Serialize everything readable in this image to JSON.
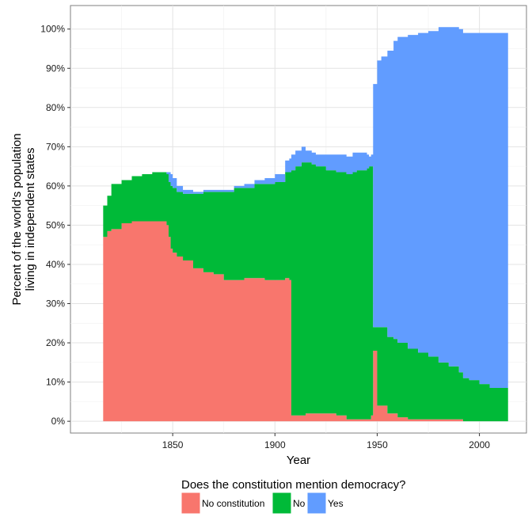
{
  "chart_data": {
    "type": "area",
    "title": "",
    "xlabel": "Year",
    "ylabel_lines": [
      "Percent of the world's population",
      "living in independent states"
    ],
    "xlim": [
      1800,
      2023
    ],
    "ylim": [
      -3,
      106
    ],
    "x_ticks": [
      1850,
      1900,
      1950,
      2000
    ],
    "x_tick_labels": [
      "1850",
      "1900",
      "1950",
      "2000"
    ],
    "y_ticks": [
      0,
      10,
      20,
      30,
      40,
      50,
      60,
      70,
      80,
      90,
      100
    ],
    "y_tick_labels": [
      "0%",
      "10%",
      "20%",
      "30%",
      "40%",
      "50%",
      "60%",
      "70%",
      "80%",
      "90%",
      "100%"
    ],
    "grid": true,
    "stacked": true,
    "legend": {
      "title": "Does the constitution mention democracy?",
      "position": "bottom"
    },
    "x": [
      1816,
      1818,
      1820,
      1825,
      1830,
      1835,
      1840,
      1845,
      1847,
      1848,
      1849,
      1850,
      1852,
      1855,
      1860,
      1865,
      1870,
      1875,
      1880,
      1885,
      1890,
      1895,
      1900,
      1905,
      1907,
      1908,
      1910,
      1913,
      1915,
      1918,
      1920,
      1925,
      1930,
      1935,
      1938,
      1940,
      1945,
      1946,
      1947,
      1948,
      1950,
      1952,
      1955,
      1958,
      1960,
      1965,
      1970,
      1975,
      1980,
      1985,
      1990,
      1992,
      1995,
      2000,
      2005,
      2010,
      2013
    ],
    "series": [
      {
        "name": "No constitution",
        "color": "#F8766D",
        "values": [
          47,
          48.5,
          49,
          50.5,
          51,
          51,
          51,
          51,
          50,
          47,
          44,
          43,
          42,
          41,
          39,
          38,
          37.5,
          36,
          36,
          36.5,
          36.5,
          36,
          36,
          36.5,
          36,
          1.5,
          1.5,
          1.5,
          2,
          2,
          2,
          2,
          1.5,
          0.5,
          0.5,
          0.5,
          0.5,
          0.5,
          1.5,
          18,
          4,
          4,
          2,
          2,
          1,
          0.5,
          0.5,
          0.5,
          0.5,
          0.5,
          0.5,
          0,
          0,
          0,
          0,
          0,
          0
        ]
      },
      {
        "name": "No",
        "color": "#00BA38",
        "values": [
          8,
          9,
          11.5,
          11,
          11.5,
          12,
          12.5,
          12.5,
          13,
          14,
          16,
          16.5,
          16.5,
          17,
          19,
          20.5,
          21,
          22.5,
          23.5,
          23,
          24,
          24.5,
          25,
          27,
          27.5,
          62.5,
          63.5,
          64.5,
          64,
          63.5,
          63,
          62,
          62,
          62.5,
          63,
          63.5,
          64,
          64.5,
          63.5,
          6,
          20,
          20,
          19.5,
          19,
          19,
          18,
          17,
          16,
          14.5,
          13.5,
          12,
          11,
          10.5,
          9.5,
          8.5,
          8.5,
          8.5
        ]
      },
      {
        "name": "Yes",
        "color": "#619CFF",
        "values": [
          0,
          0,
          0,
          0,
          0,
          0,
          0,
          0,
          0.5,
          2.5,
          3,
          2.5,
          1.5,
          1,
          0.5,
          0.5,
          0.5,
          0.5,
          0.5,
          1,
          1,
          1.5,
          2,
          3,
          3.5,
          4,
          4,
          4,
          3,
          3,
          3,
          4,
          4.5,
          4.5,
          5,
          4.5,
          3.5,
          2.5,
          3,
          62,
          68,
          69,
          73,
          76,
          78,
          80,
          81.5,
          83,
          85.5,
          86.5,
          87.5,
          88,
          88.5,
          89.5,
          90.5,
          90.5,
          90.5
        ]
      }
    ]
  }
}
